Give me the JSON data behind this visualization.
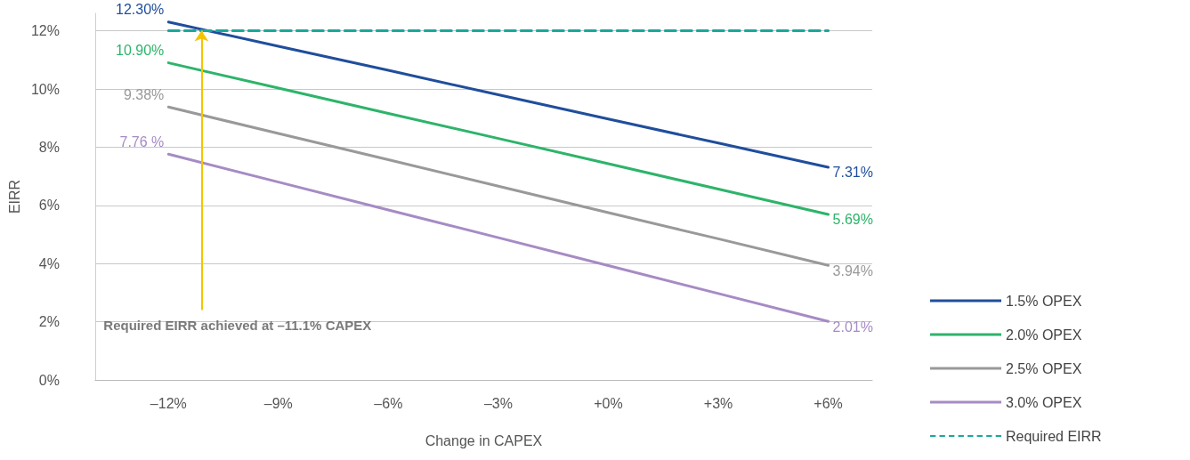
{
  "chart_data": {
    "type": "line",
    "xlabel": "Change in CAPEX",
    "ylabel": "EIRR",
    "x": [
      -12,
      -9,
      -6,
      -3,
      0,
      3,
      6
    ],
    "xlim": [
      -14,
      7.2
    ],
    "xticks": [
      {
        "value": -12,
        "label": "–12%"
      },
      {
        "value": -9,
        "label": "–9%"
      },
      {
        "value": -6,
        "label": "–6%"
      },
      {
        "value": -3,
        "label": "–3%"
      },
      {
        "value": 0,
        "label": "+0%"
      },
      {
        "value": 3,
        "label": "+3%"
      },
      {
        "value": 6,
        "label": "+6%"
      }
    ],
    "ylim": [
      0,
      12.6
    ],
    "yticks": [
      {
        "value": 0,
        "label": "0%"
      },
      {
        "value": 2,
        "label": "2%"
      },
      {
        "value": 4,
        "label": "4%"
      },
      {
        "value": 6,
        "label": "6%"
      },
      {
        "value": 8,
        "label": "8%"
      },
      {
        "value": 10,
        "label": "10%"
      },
      {
        "value": 12,
        "label": "12%"
      }
    ],
    "grid": "y",
    "legend": "right",
    "marker": "none",
    "line_style": "solid",
    "series": [
      {
        "name": "1.5% OPEX",
        "color": "#1f4e9c",
        "values": [
          12.3,
          11.47,
          10.64,
          9.8,
          8.97,
          8.14,
          7.31
        ],
        "value_labels": [
          "12.30%",
          null,
          null,
          null,
          null,
          null,
          "7.31%"
        ]
      },
      {
        "name": "2.0% OPEX",
        "color": "#2db46a",
        "values": [
          10.9,
          10.03,
          9.16,
          8.3,
          7.43,
          6.56,
          5.69
        ],
        "value_labels": [
          "10.90%",
          null,
          null,
          null,
          null,
          null,
          "5.69%"
        ]
      },
      {
        "name": "2.5% OPEX",
        "color": "#999999",
        "values": [
          9.38,
          8.47,
          7.57,
          6.66,
          5.75,
          4.85,
          3.94
        ],
        "value_labels": [
          "9.38%",
          null,
          null,
          null,
          null,
          null,
          "3.94%"
        ]
      },
      {
        "name": "3.0% OPEX",
        "color": "#a68bc4",
        "values": [
          7.76,
          6.8,
          5.84,
          4.89,
          3.93,
          2.97,
          2.01
        ],
        "value_labels": [
          "7.76 %",
          null,
          null,
          null,
          null,
          null,
          "2.01%"
        ]
      },
      {
        "name": "Required EIRR",
        "color": "#1aa89a",
        "line_style": "dashed",
        "values": [
          12,
          12,
          12,
          12,
          12,
          12,
          12
        ]
      }
    ],
    "annotations": [
      {
        "text": "Required EIRR achieved at –11.1% CAPEX",
        "x": -11.1,
        "y": 12
      }
    ]
  }
}
